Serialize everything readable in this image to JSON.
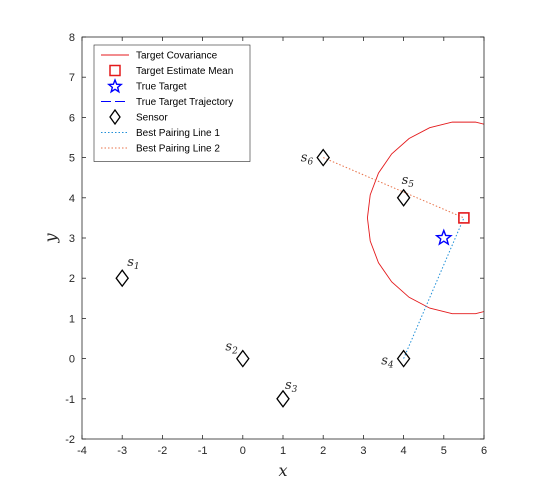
{
  "chart_data": {
    "type": "scatter",
    "xlabel": "x",
    "ylabel": "y",
    "xlim": [
      -4,
      6
    ],
    "ylim": [
      -2,
      8
    ],
    "xticks": [
      -4,
      -3,
      -2,
      -1,
      0,
      1,
      2,
      3,
      4,
      5,
      6
    ],
    "yticks": [
      -2,
      -1,
      0,
      1,
      2,
      3,
      4,
      5,
      6,
      7,
      8
    ],
    "grid": false,
    "legend_position": "top-left",
    "sensors": [
      {
        "label": "s",
        "sub": "1",
        "x": -3,
        "y": 2
      },
      {
        "label": "s",
        "sub": "2",
        "x": 0,
        "y": 0
      },
      {
        "label": "s",
        "sub": "3",
        "x": 1,
        "y": -1
      },
      {
        "label": "s",
        "sub": "4",
        "x": 4,
        "y": 0
      },
      {
        "label": "s",
        "sub": "5",
        "x": 4,
        "y": 4
      },
      {
        "label": "s",
        "sub": "6",
        "x": 2,
        "y": 5
      }
    ],
    "target_estimate_mean": {
      "x": 5.5,
      "y": 3.5
    },
    "true_target": {
      "x": 5,
      "y": 3
    },
    "target_covariance": {
      "center": [
        5.5,
        3.5
      ],
      "radius": 2.4
    },
    "best_pairing_line_1": {
      "from": [
        4,
        0
      ],
      "to": [
        5.5,
        3.5
      ]
    },
    "best_pairing_line_2": {
      "from": [
        2,
        5
      ],
      "to": [
        5.5,
        3.5
      ]
    },
    "legend": [
      {
        "key": "covariance",
        "label": "Target Covariance"
      },
      {
        "key": "mean",
        "label": "Target Estimate Mean"
      },
      {
        "key": "true",
        "label": "True Target"
      },
      {
        "key": "trajectory",
        "label": "True Target Trajectory"
      },
      {
        "key": "sensor",
        "label": "Sensor"
      },
      {
        "key": "pair1",
        "label": "Best Pairing Line 1"
      },
      {
        "key": "pair2",
        "label": "Best Pairing Line 2"
      }
    ],
    "colors": {
      "covariance": "#e41a1c",
      "mean": "#e41a1c",
      "true": "#0000ff",
      "trajectory": "#0000ff",
      "sensor": "#000000",
      "pair1": "#1f8fd8",
      "pair2": "#e8734a"
    }
  }
}
